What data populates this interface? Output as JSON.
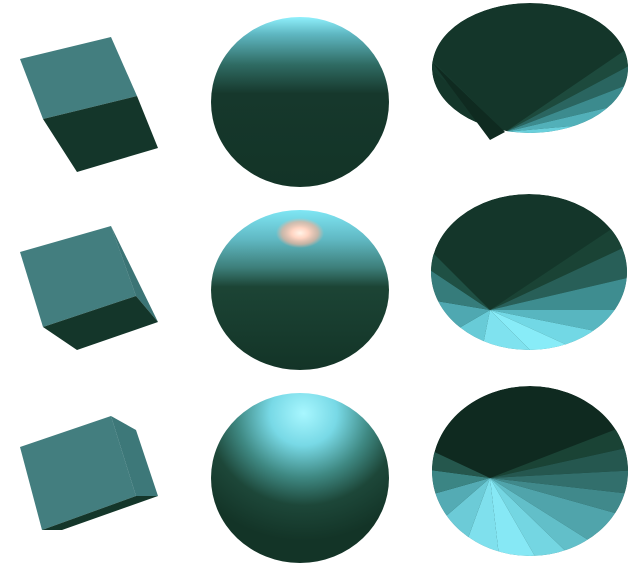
{
  "scene": {
    "background": "#ffffff",
    "colors": {
      "dark": "#14362a",
      "deep": "#0f2a20",
      "face": "#437e7f",
      "light": "#7ee7f5",
      "bright": "#a4f6ff",
      "specular": "#ffd2bf"
    },
    "rows": [
      {
        "objects": [
          {
            "shape": "cube",
            "lighting": "flat"
          },
          {
            "shape": "sphere",
            "lighting": "rim-top"
          },
          {
            "shape": "cone",
            "lighting": "rim-lower-right"
          }
        ]
      },
      {
        "objects": [
          {
            "shape": "cube",
            "lighting": "flat"
          },
          {
            "shape": "sphere",
            "lighting": "specular-highlight"
          },
          {
            "shape": "cone",
            "lighting": "lower-fan"
          }
        ]
      },
      {
        "objects": [
          {
            "shape": "cube",
            "lighting": "flat"
          },
          {
            "shape": "sphere",
            "lighting": "diffuse-top"
          },
          {
            "shape": "cone",
            "lighting": "wide-fan"
          }
        ]
      }
    ]
  }
}
